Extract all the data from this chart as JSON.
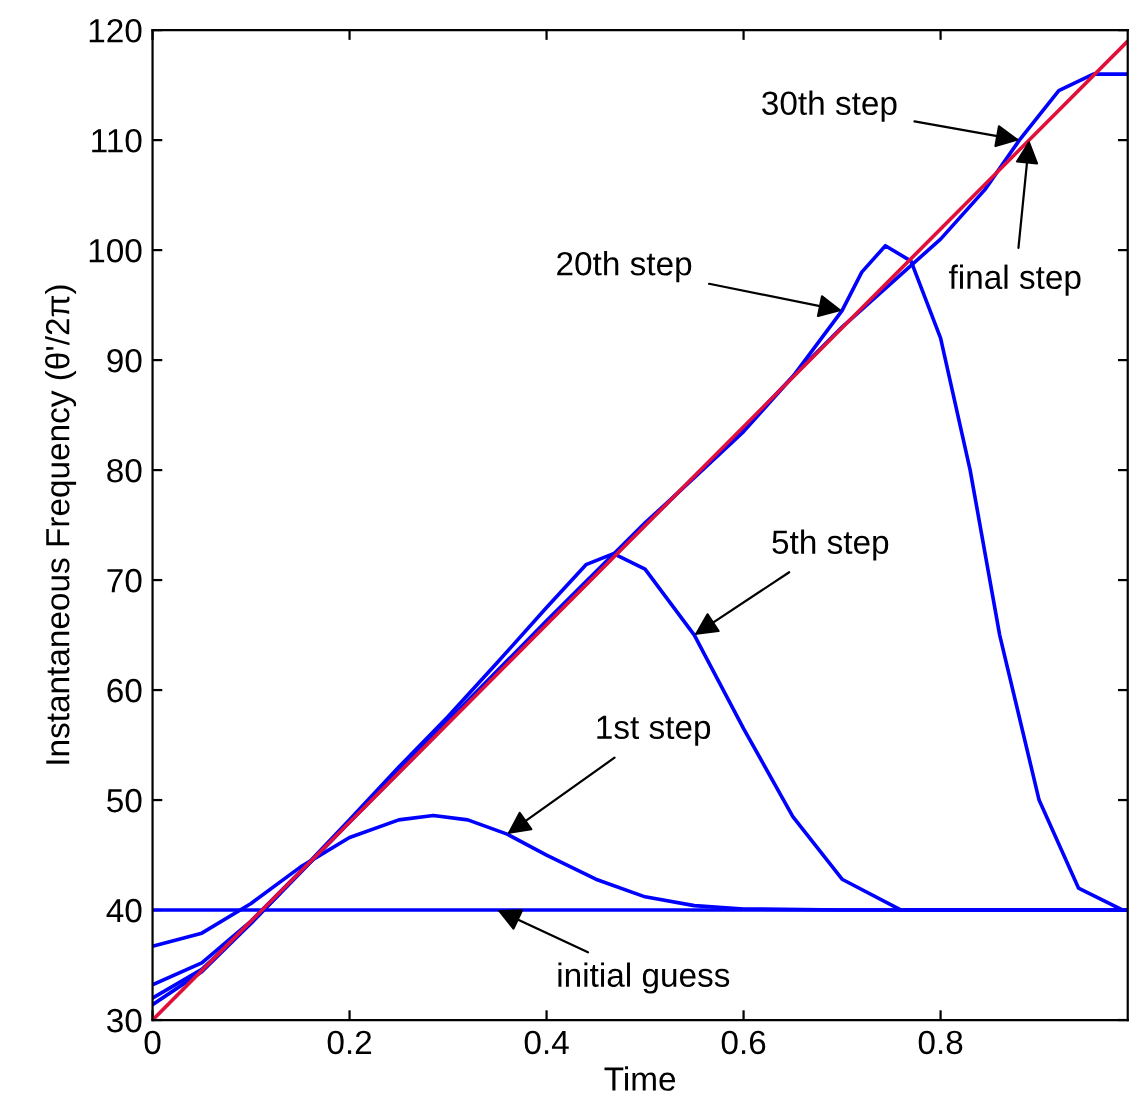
{
  "chart_data": {
    "type": "line",
    "xlabel": "Time",
    "ylabel": "Instantaneous Frequency (θ'/2π)",
    "xlim": [
      0,
      0.99
    ],
    "ylim": [
      30,
      120
    ],
    "xticks": [
      0,
      0.2,
      0.4,
      0.6,
      0.8
    ],
    "yticks": [
      30,
      40,
      50,
      60,
      70,
      80,
      90,
      100,
      110,
      120
    ],
    "grid": false,
    "legend": false,
    "marker": "none",
    "line_style": "solid",
    "series": [
      {
        "color": "#0000ff",
        "x": [
          0,
          0.99
        ],
        "values": [
          40,
          40
        ]
      },
      {
        "color": "#0000ff",
        "x": [
          0,
          0.05,
          0.1,
          0.15,
          0.2,
          0.25,
          0.285,
          0.32,
          0.36,
          0.4,
          0.45,
          0.5,
          0.55,
          0.6,
          0.7,
          0.8,
          0.9,
          0.99
        ],
        "values": [
          36.7,
          37.9,
          40.6,
          43.9,
          46.6,
          48.2,
          48.6,
          48.2,
          46.9,
          45.0,
          42.8,
          41.2,
          40.4,
          40.1,
          40,
          40,
          40,
          40
        ]
      },
      {
        "color": "#0000ff",
        "x": [
          0,
          0.05,
          0.1,
          0.15,
          0.2,
          0.25,
          0.3,
          0.35,
          0.4,
          0.44,
          0.468,
          0.5,
          0.55,
          0.6,
          0.65,
          0.7,
          0.76,
          0.85,
          0.99
        ],
        "values": [
          33.2,
          35.2,
          39.0,
          43.5,
          48.2,
          53.0,
          57.6,
          62.5,
          67.5,
          71.4,
          72.4,
          71.0,
          65.0,
          56.5,
          48.5,
          42.8,
          40.0,
          40,
          40
        ]
      },
      {
        "color": "#0000ff",
        "x": [
          0,
          0.05,
          0.1,
          0.2,
          0.3,
          0.4,
          0.5,
          0.55,
          0.6,
          0.65,
          0.7,
          0.72,
          0.744,
          0.77,
          0.8,
          0.83,
          0.86,
          0.9,
          0.94,
          0.985,
          0.99
        ],
        "values": [
          32.0,
          34.6,
          38.8,
          48.0,
          57.2,
          66.3,
          75.2,
          79.3,
          83.5,
          88.5,
          94.5,
          98.0,
          100.4,
          99.0,
          92.0,
          80.0,
          65.0,
          50.0,
          42.0,
          40.0,
          40
        ]
      },
      {
        "color": "#0000ff",
        "x": [
          0,
          0.05,
          0.1,
          0.2,
          0.3,
          0.4,
          0.5,
          0.6,
          0.65,
          0.7,
          0.75,
          0.8,
          0.845,
          0.88,
          0.92,
          0.955,
          0.99
        ],
        "values": [
          31.4,
          34.4,
          38.8,
          48.0,
          57.0,
          66.0,
          75.0,
          83.8,
          88.5,
          93.0,
          97.0,
          101.0,
          105.5,
          110.0,
          114.5,
          116.0,
          116.0
        ]
      },
      {
        "color": "#e0103a",
        "x": [
          0,
          0.99
        ],
        "values": [
          30,
          119
        ]
      }
    ],
    "annotations": [
      {
        "text": "30th step",
        "x": 0.88,
        "y": 110.0
      },
      {
        "text": "20th step",
        "x": 0.7,
        "y": 94.5
      },
      {
        "text": "final step",
        "x": 0.89,
        "y": 110.0
      },
      {
        "text": "5th step",
        "x": 0.55,
        "y": 65.0
      },
      {
        "text": "1st step",
        "x": 0.36,
        "y": 46.9
      },
      {
        "text": "initial guess",
        "x": 0.35,
        "y": 40
      }
    ]
  }
}
